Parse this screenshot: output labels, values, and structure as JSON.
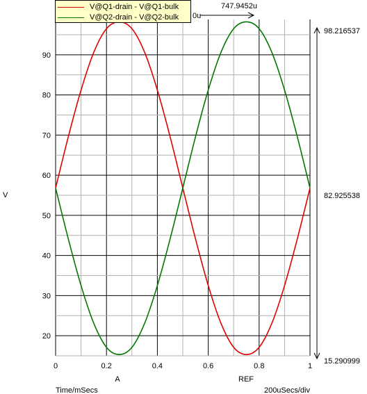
{
  "chart_data": {
    "type": "line",
    "ylabel": "V",
    "xlabel": "Time/mSecs",
    "x_scale_label": "200uSecs/div",
    "xlim": [
      0,
      1
    ],
    "ylim": [
      15,
      98.8
    ],
    "xticks": [
      "0",
      "0.2",
      "0.4",
      "0.6",
      "0.8",
      "1"
    ],
    "yticks": [
      "20",
      "30",
      "40",
      "50",
      "60",
      "70",
      "80",
      "90"
    ],
    "grid": true,
    "legend_position": "top-left",
    "series": [
      {
        "name": "V@Q1-drain - V@Q1-bulk",
        "color": "#e00000",
        "x": [
          0,
          0.05,
          0.1,
          0.15,
          0.2,
          0.25,
          0.3,
          0.35,
          0.4,
          0.45,
          0.5,
          0.55,
          0.6,
          0.65,
          0.7,
          0.75,
          0.8,
          0.85,
          0.9,
          0.95,
          1
        ],
        "y": [
          56.8,
          69.6,
          81.2,
          90.6,
          96.5,
          98.2,
          96.5,
          90.6,
          81.2,
          69.6,
          56.8,
          44.1,
          32.5,
          23.1,
          17.1,
          15.3,
          17.1,
          23.1,
          32.5,
          44.1,
          56.8
        ]
      },
      {
        "name": "V@Q2-drain - V@Q2-bulk",
        "color": "#007800",
        "x": [
          0,
          0.05,
          0.1,
          0.15,
          0.2,
          0.25,
          0.3,
          0.35,
          0.4,
          0.45,
          0.5,
          0.55,
          0.6,
          0.65,
          0.7,
          0.75,
          0.8,
          0.85,
          0.9,
          0.95,
          1
        ],
        "y": [
          56.8,
          44.1,
          32.5,
          23.1,
          17.1,
          15.3,
          17.1,
          23.1,
          32.5,
          44.1,
          56.8,
          69.6,
          81.2,
          90.6,
          96.5,
          98.2,
          96.5,
          90.6,
          81.2,
          69.6,
          56.8
        ]
      }
    ],
    "cursor_A": {
      "label": "A",
      "x": 0.25
    },
    "cursor_REF": {
      "label": "REF",
      "x": 0.75
    },
    "cursor_delta": {
      "text": "747.9452u",
      "clipped_text": "0u"
    },
    "right_cursor": {
      "max_label": "98.216537",
      "mid_label": "82.925538",
      "min_label": "15.290999",
      "max_value": 98.216537,
      "min_value": 15.290999
    }
  }
}
